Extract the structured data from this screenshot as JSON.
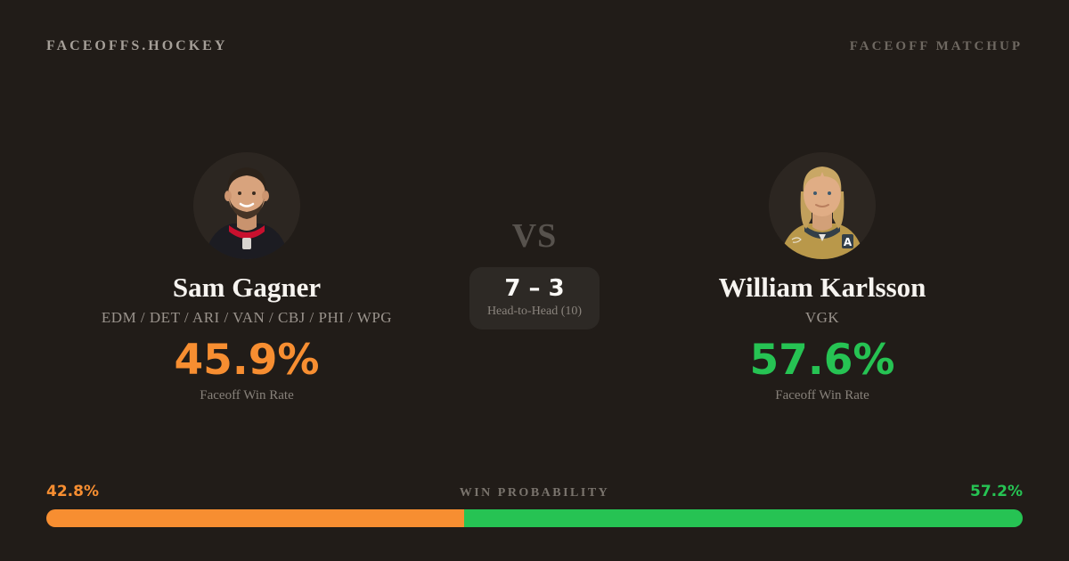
{
  "header": {
    "brand": "FACEOFFS.HOCKEY",
    "page_label": "FACEOFF MATCHUP"
  },
  "players": {
    "left": {
      "name": "Sam Gagner",
      "teams": "EDM / DET / ARI / VAN / CBJ / PHI / WPG",
      "win_rate": "45.9%",
      "win_rate_label": "Faceoff Win Rate",
      "accent_color": "#f78e31"
    },
    "right": {
      "name": "William Karlsson",
      "teams": "VGK",
      "win_rate": "57.6%",
      "win_rate_label": "Faceoff Win Rate",
      "accent_color": "#26c353"
    }
  },
  "matchup": {
    "vs_label": "VS",
    "head_to_head_score": "7 – 3",
    "head_to_head_label": "Head-to-Head (10)"
  },
  "win_probability": {
    "title": "WIN PROBABILITY",
    "left_pct_label": "42.8%",
    "right_pct_label": "57.2%",
    "left_value": 42.8,
    "right_value": 57.2
  },
  "colors": {
    "background": "#211c18",
    "orange": "#f78e31",
    "green": "#26c353",
    "card": "#2d2925"
  }
}
